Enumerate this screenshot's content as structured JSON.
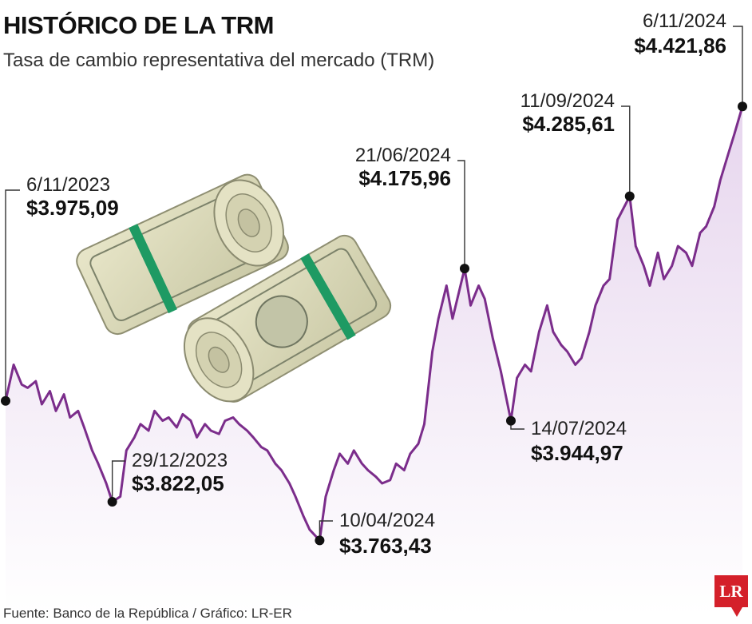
{
  "header": {
    "title": "HISTÓRICO DE LA TRM",
    "subtitle": "Tasa de cambio representativa del mercado (TRM)"
  },
  "footer": {
    "source": "Fuente: Banco de la República / Gráfico: LR-ER",
    "logo_text": "LR"
  },
  "colors": {
    "line": "#7b2d8b",
    "area": "#f1e7f4",
    "marker": "#111111",
    "logo_bg": "#d4202a"
  },
  "illustration": "rolled-dollar-bills-image",
  "chart_data": {
    "type": "line",
    "x_start": "6/11/2023",
    "x_end": "6/11/2024",
    "ylim": [
      3650,
      4450
    ],
    "grid": false,
    "series": [
      {
        "x": [
          "6/11/2023",
          "10/11/2023",
          "14/11/2023",
          "17/11/2023",
          "21/11/2023",
          "24/11/2023",
          "28/11/2023",
          "1/12/2023",
          "5/12/2023",
          "8/12/2023",
          "12/12/2023",
          "15/12/2023",
          "19/12/2023",
          "22/12/2023",
          "26/12/2023",
          "29/12/2023",
          "2/01/2024",
          "5/01/2024",
          "9/01/2024",
          "12/01/2024",
          "16/01/2024",
          "19/01/2024",
          "23/01/2024",
          "26/01/2024",
          "30/01/2024",
          "2/02/2024",
          "6/02/2024",
          "9/02/2024",
          "13/02/2024",
          "16/02/2024",
          "20/02/2024",
          "23/02/2024",
          "27/02/2024",
          "1/03/2024",
          "5/03/2024",
          "8/03/2024",
          "12/03/2024",
          "15/03/2024",
          "19/03/2024",
          "22/03/2024",
          "26/03/2024",
          "29/03/2024",
          "2/04/2024",
          "5/04/2024",
          "10/04/2024",
          "13/04/2024",
          "17/04/2024",
          "20/04/2024",
          "24/04/2024",
          "27/04/2024",
          "1/05/2024",
          "4/05/2024",
          "8/05/2024",
          "11/05/2024",
          "15/05/2024",
          "18/05/2024",
          "22/05/2024",
          "25/05/2024",
          "29/05/2024",
          "1/06/2024",
          "5/06/2024",
          "8/06/2024",
          "12/06/2024",
          "15/06/2024",
          "21/06/2024",
          "24/06/2024",
          "28/06/2024",
          "1/07/2024",
          "5/07/2024",
          "9/07/2024",
          "14/07/2024",
          "17/07/2024",
          "21/07/2024",
          "24/07/2024",
          "28/07/2024",
          "1/08/2024",
          "4/08/2024",
          "8/08/2024",
          "11/08/2024",
          "15/08/2024",
          "18/08/2024",
          "22/08/2024",
          "25/08/2024",
          "29/08/2024",
          "1/09/2024",
          "5/09/2024",
          "11/09/2024",
          "14/09/2024",
          "18/09/2024",
          "21/09/2024",
          "25/09/2024",
          "28/09/2024",
          "2/10/2024",
          "5/10/2024",
          "9/10/2024",
          "12/10/2024",
          "16/10/2024",
          "19/10/2024",
          "23/10/2024",
          "26/10/2024",
          "30/10/2024",
          "2/11/2024",
          "6/11/2024"
        ],
        "values": [
          3975.09,
          4030,
          4000,
          3995,
          4005,
          3970,
          3990,
          3960,
          3985,
          3950,
          3960,
          3935,
          3900,
          3880,
          3850,
          3822.05,
          3830,
          3900,
          3920,
          3940,
          3930,
          3960,
          3945,
          3950,
          3935,
          3955,
          3945,
          3920,
          3940,
          3930,
          3925,
          3945,
          3950,
          3940,
          3930,
          3920,
          3905,
          3900,
          3880,
          3870,
          3850,
          3830,
          3800,
          3780,
          3763.43,
          3830,
          3870,
          3895,
          3880,
          3900,
          3880,
          3870,
          3860,
          3850,
          3855,
          3880,
          3870,
          3895,
          3910,
          3940,
          4050,
          4100,
          4150,
          4100,
          4175.96,
          4120,
          4150,
          4130,
          4070,
          4020,
          3944.97,
          4010,
          4030,
          4020,
          4080,
          4120,
          4080,
          4060,
          4050,
          4030,
          4040,
          4080,
          4120,
          4150,
          4160,
          4250,
          4285.61,
          4210,
          4180,
          4150,
          4200,
          4160,
          4180,
          4210,
          4200,
          4180,
          4230,
          4240,
          4270,
          4310,
          4350,
          4380,
          4421.86
        ]
      }
    ],
    "annotations": [
      {
        "date": "6/11/2023",
        "value": 3975.09,
        "value_label": "$3.975,09"
      },
      {
        "date": "29/12/2023",
        "value": 3822.05,
        "value_label": "$3.822,05"
      },
      {
        "date": "10/04/2024",
        "value": 3763.43,
        "value_label": "$3.763,43"
      },
      {
        "date": "21/06/2024",
        "value": 4175.96,
        "value_label": "$4.175,96"
      },
      {
        "date": "14/07/2024",
        "value": 3944.97,
        "value_label": "$3.944,97"
      },
      {
        "date": "11/09/2024",
        "value": 4285.61,
        "value_label": "$4.285,61"
      },
      {
        "date": "6/11/2024",
        "value": 4421.86,
        "value_label": "$4.421,86"
      }
    ]
  }
}
